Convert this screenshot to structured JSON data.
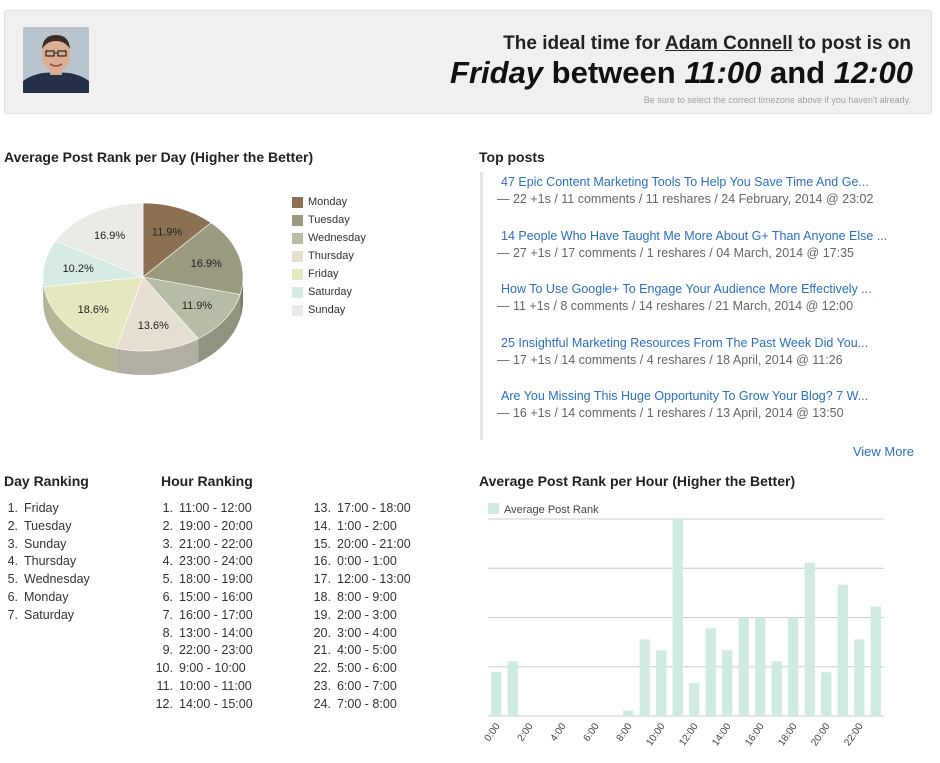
{
  "header": {
    "prefix": "The ideal time for",
    "user": "Adam Connell",
    "suffix": "to post is on",
    "day": "Friday",
    "between": "between",
    "from": "11:00",
    "and": "and",
    "to": "12:00",
    "note": "Be sure to select the correct timezone above if you haven't already."
  },
  "day_chart_title": "Average Post Rank per Day (Higher the Better)",
  "top_posts_title": "Top posts",
  "posts": [
    {
      "title": "47 Epic Content Marketing Tools To Help You Save Time And Ge...",
      "meta": "— 22 +1s / 11 comments / 11 reshares / 24 February, 2014 @ 23:02"
    },
    {
      "title": "14 People Who Have Taught Me More About G+ Than Anyone Else ...",
      "meta": "— 27 +1s / 17 comments / 1 reshares / 04 March, 2014 @ 17:35"
    },
    {
      "title": "How To Use Google+ To Engage Your Audience More Effectively ...",
      "meta": "— 11 +1s / 8 comments / 14 reshares / 21 March, 2014 @ 12:00"
    },
    {
      "title": "25 Insightful Marketing Resources From The Past Week Did You...",
      "meta": "— 17 +1s / 14 comments / 4 reshares / 18 April, 2014 @ 11:26"
    },
    {
      "title": "Are You Missing This Huge Opportunity To Grow Your Blog? 7 W...",
      "meta": "— 16 +1s / 14 comments / 1 reshares / 13 April, 2014 @ 13:50"
    }
  ],
  "view_more": "View More",
  "day_ranking_title": "Day Ranking",
  "day_ranking": [
    "Friday",
    "Tuesday",
    "Sunday",
    "Thursday",
    "Wednesday",
    "Monday",
    "Saturday"
  ],
  "hour_ranking_title": "Hour Ranking",
  "hour_ranking": [
    "11:00 - 12:00",
    "19:00 - 20:00",
    "21:00 - 22:00",
    "23:00 - 24:00",
    "18:00 - 19:00",
    "15:00 - 16:00",
    "16:00 - 17:00",
    "13:00 - 14:00",
    "22:00 - 23:00",
    "9:00 - 10:00",
    "10:00 - 11:00",
    "14:00 - 15:00",
    "17:00 - 18:00",
    "1:00 - 2:00",
    "20:00 - 21:00",
    "0:00 - 1:00",
    "12:00 - 13:00",
    "8:00 - 9:00",
    "2:00 - 3:00",
    "3:00 - 4:00",
    "4:00 - 5:00",
    "5:00 - 6:00",
    "6:00 - 7:00",
    "7:00 - 8:00"
  ],
  "hour_chart_title": "Average Post Rank per Hour (Higher the Better)",
  "chart_data": [
    {
      "type": "pie",
      "title": "Average Post Rank per Day (Higher the Better)",
      "categories": [
        "Monday",
        "Tuesday",
        "Wednesday",
        "Thursday",
        "Friday",
        "Saturday",
        "Sunday"
      ],
      "values": [
        11.9,
        16.9,
        11.9,
        13.6,
        18.6,
        10.2,
        16.9
      ],
      "labels": [
        "11.9%",
        "16.9%",
        "11.9%",
        "13.6%",
        "18.6%",
        "10.2%",
        "16.9%"
      ],
      "colors": [
        "#8b7151",
        "#999a7e",
        "#b7bca4",
        "#e4dfd0",
        "#e5e8bf",
        "#d6ebe4",
        "#eaeae6"
      ],
      "legend": "right",
      "style": "3d"
    },
    {
      "type": "bar",
      "title": "Average Post Rank per Hour (Higher the Better)",
      "series": [
        {
          "name": "Average Post Rank",
          "values": [
            4,
            5,
            0,
            0,
            0,
            0,
            0,
            0,
            0.5,
            7,
            6,
            18,
            3,
            8,
            6,
            9,
            9,
            5,
            9,
            14,
            4,
            12,
            7,
            10
          ]
        }
      ],
      "categories": [
        "0:00",
        "1:00",
        "2:00",
        "3:00",
        "4:00",
        "5:00",
        "6:00",
        "7:00",
        "8:00",
        "9:00",
        "10:00",
        "11:00",
        "12:00",
        "13:00",
        "14:00",
        "15:00",
        "16:00",
        "17:00",
        "18:00",
        "19:00",
        "20:00",
        "21:00",
        "22:00",
        "23:00"
      ],
      "tick_labels": [
        "0:00",
        "2:00",
        "4:00",
        "6:00",
        "8:00",
        "10:00",
        "12:00",
        "14:00",
        "16:00",
        "18:00",
        "20:00",
        "22:00"
      ],
      "ylim": [
        0,
        18
      ],
      "grid": true,
      "legend": "top-left",
      "color": "#cfeae0"
    }
  ]
}
